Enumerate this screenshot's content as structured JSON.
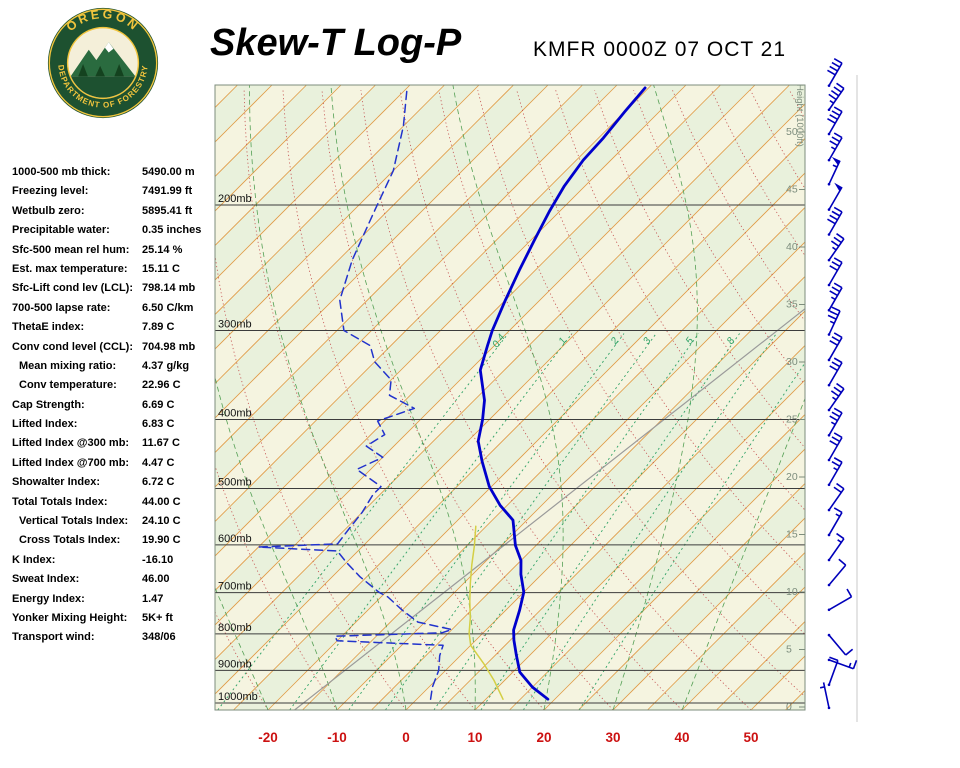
{
  "header": {
    "title": "Skew-T Log-P",
    "station": "KMFR 0000Z 07 OCT 21"
  },
  "logo": {
    "arc_top": "OREGON",
    "arc_bottom": "DEPARTMENT OF FORESTRY",
    "ring_color": "#1d5130",
    "accent_color": "#f2c53d"
  },
  "indices": [
    {
      "label": "1000-500 mb thick:",
      "value": "5490.00 m",
      "indent": false
    },
    {
      "label": "Freezing level:",
      "value": "7491.99 ft",
      "indent": false
    },
    {
      "label": "Wetbulb zero:",
      "value": "5895.41 ft",
      "indent": false
    },
    {
      "label": "Precipitable water:",
      "value": "0.35 inches",
      "indent": false
    },
    {
      "label": "Sfc-500 mean rel hum:",
      "value": "25.14 %",
      "indent": false
    },
    {
      "label": "Est. max temperature:",
      "value": "15.11 C",
      "indent": false
    },
    {
      "label": "Sfc-Lift cond lev (LCL):",
      "value": "798.14 mb",
      "indent": false
    },
    {
      "label": "700-500 lapse rate:",
      "value": "6.50 C/km",
      "indent": false
    },
    {
      "label": "ThetaE index:",
      "value": "7.89 C",
      "indent": false
    },
    {
      "label": "Conv cond level (CCL):",
      "value": "704.98 mb",
      "indent": false
    },
    {
      "label": "Mean mixing ratio:",
      "value": "4.37 g/kg",
      "indent": true
    },
    {
      "label": "Conv temperature:",
      "value": "22.96 C",
      "indent": true
    },
    {
      "label": "Cap Strength:",
      "value": "6.69 C",
      "indent": false
    },
    {
      "label": "Lifted Index:",
      "value": "6.83 C",
      "indent": false
    },
    {
      "label": "Lifted Index @300 mb:",
      "value": "11.67 C",
      "indent": false
    },
    {
      "label": "Lifted Index @700 mb:",
      "value": "4.47 C",
      "indent": false
    },
    {
      "label": "Showalter Index:",
      "value": "6.72 C",
      "indent": false
    },
    {
      "label": "Total Totals Index:",
      "value": "44.00 C",
      "indent": false
    },
    {
      "label": "Vertical Totals Index:",
      "value": "24.10 C",
      "indent": true
    },
    {
      "label": "Cross Totals Index:",
      "value": "19.90 C",
      "indent": true
    },
    {
      "label": "K Index:",
      "value": "-16.10",
      "indent": false
    },
    {
      "label": "Sweat Index:",
      "value": "46.00",
      "indent": false
    },
    {
      "label": "Energy Index:",
      "value": "1.47",
      "indent": false
    },
    {
      "label": "Yonker Mixing Height:",
      "value": "5K+ ft",
      "indent": false
    },
    {
      "label": "Transport wind:",
      "value": "348/06",
      "indent": false
    }
  ],
  "chart_data": {
    "type": "line",
    "diagram": "Skew-T Log-P thermodynamic sounding",
    "title": "Skew-T Log-P",
    "station_line": "KMFR 0000Z 07 OCT 21",
    "x_axis": {
      "ticks": [
        -20,
        -10,
        0,
        10,
        20,
        30,
        40,
        50
      ],
      "unit": "C"
    },
    "pressure_levels": [
      200,
      300,
      400,
      500,
      600,
      700,
      800,
      900,
      1000
    ],
    "pressure_label_suffix": "mb",
    "height_axis": {
      "title": "Height (1000ft)",
      "ticks": [
        50,
        45,
        40,
        35,
        30,
        25,
        20,
        15,
        10,
        5,
        0
      ]
    },
    "mixing_ratio_labels": [
      "0.4",
      "1",
      "2",
      "3",
      "5",
      "8"
    ],
    "background_lines": {
      "isotherm_step_c": 5,
      "band_step_c": 5,
      "dry_adiabat_min": -40,
      "dry_adiabat_max": 180,
      "dry_adiabat_step": 10,
      "moist_adiabat_starts_c": [
        -20,
        -10,
        0,
        10,
        20,
        30,
        40
      ],
      "mixing_ratios_gkg": [
        0.4,
        1,
        2,
        3,
        5,
        8,
        12,
        20
      ]
    },
    "reference_line": {
      "from": [
        292,
        712
      ],
      "to": [
        806,
        308
      ]
    },
    "series": [
      {
        "name": "parcel",
        "color": "#d4cf45",
        "width": 1.5,
        "dash": "",
        "points": [
          [
            988,
            12.5
          ],
          [
            930,
            8.5
          ],
          [
            880,
            4.5
          ],
          [
            830,
            0
          ],
          [
            798,
            -2
          ],
          [
            760,
            -4
          ],
          [
            720,
            -6.5
          ],
          [
            680,
            -9
          ],
          [
            640,
            -11.5
          ],
          [
            600,
            -14
          ],
          [
            565,
            -16.5
          ]
        ]
      },
      {
        "name": "dewpoint",
        "color": "#2233cc",
        "width": 1.5,
        "dash": "8,5",
        "points": [
          [
            988,
            2
          ],
          [
            950,
            0.5
          ],
          [
            900,
            -1
          ],
          [
            858,
            -3
          ],
          [
            830,
            -4
          ],
          [
            818,
            -20
          ],
          [
            806,
            -21
          ],
          [
            797,
            -6
          ],
          [
            789,
            -5
          ],
          [
            770,
            -11
          ],
          [
            741,
            -15
          ],
          [
            710,
            -19
          ],
          [
            699,
            -21
          ],
          [
            665,
            -26
          ],
          [
            635,
            -30
          ],
          [
            612,
            -33
          ],
          [
            604,
            -45
          ],
          [
            598,
            -34
          ],
          [
            570,
            -34.5
          ],
          [
            540,
            -35
          ],
          [
            510,
            -36
          ],
          [
            497,
            -36
          ],
          [
            470,
            -42
          ],
          [
            452,
            -40
          ],
          [
            436,
            -44
          ],
          [
            420,
            -43
          ],
          [
            402,
            -46
          ],
          [
            386,
            -42.5
          ],
          [
            370,
            -48
          ],
          [
            352,
            -50
          ],
          [
            332,
            -55
          ],
          [
            315,
            -58
          ],
          [
            300,
            -64
          ],
          [
            272,
            -69
          ],
          [
            239,
            -73
          ],
          [
            203,
            -77
          ],
          [
            179,
            -80
          ],
          [
            155,
            -85
          ],
          [
            137,
            -90
          ]
        ]
      },
      {
        "name": "temperature",
        "color": "#0000cc",
        "width": 2.8,
        "dash": "",
        "points": [
          [
            988,
            19
          ],
          [
            950,
            15
          ],
          [
            905,
            11
          ],
          [
            856,
            8
          ],
          [
            816,
            5.5
          ],
          [
            790,
            4
          ],
          [
            741,
            2
          ],
          [
            699,
            0
          ],
          [
            660,
            -3
          ],
          [
            631,
            -5
          ],
          [
            601,
            -8
          ],
          [
            554,
            -12
          ],
          [
            528,
            -16
          ],
          [
            497,
            -20.3
          ],
          [
            458,
            -25
          ],
          [
            429,
            -28.5
          ],
          [
            400,
            -31
          ],
          [
            376,
            -33.5
          ],
          [
            341,
            -38.5
          ],
          [
            315,
            -41
          ],
          [
            300,
            -42.5
          ],
          [
            272,
            -45
          ],
          [
            247,
            -47.3
          ],
          [
            224,
            -49.5
          ],
          [
            204,
            -51.5
          ],
          [
            188,
            -53
          ],
          [
            173,
            -54
          ],
          [
            161,
            -54.3
          ],
          [
            148,
            -55
          ],
          [
            137,
            -55.5
          ]
        ]
      }
    ],
    "wind_barbs": [
      {
        "p": 136,
        "dir": 30,
        "spd": 40
      },
      {
        "p": 147,
        "dir": 35,
        "spd": 45
      },
      {
        "p": 159,
        "dir": 30,
        "spd": 40
      },
      {
        "p": 173,
        "dir": 30,
        "spd": 35
      },
      {
        "p": 187,
        "dir": 25,
        "spd": 55
      },
      {
        "p": 203,
        "dir": 30,
        "spd": 50
      },
      {
        "p": 220,
        "dir": 30,
        "spd": 40
      },
      {
        "p": 239,
        "dir": 35,
        "spd": 35
      },
      {
        "p": 259,
        "dir": 30,
        "spd": 30
      },
      {
        "p": 281,
        "dir": 30,
        "spd": 35
      },
      {
        "p": 304,
        "dir": 25,
        "spd": 35
      },
      {
        "p": 330,
        "dir": 30,
        "spd": 30
      },
      {
        "p": 358,
        "dir": 30,
        "spd": 30
      },
      {
        "p": 388,
        "dir": 35,
        "spd": 35
      },
      {
        "p": 421,
        "dir": 30,
        "spd": 35
      },
      {
        "p": 456,
        "dir": 30,
        "spd": 30
      },
      {
        "p": 494,
        "dir": 30,
        "spd": 25
      },
      {
        "p": 536,
        "dir": 35,
        "spd": 20
      },
      {
        "p": 581,
        "dir": 30,
        "spd": 15
      },
      {
        "p": 630,
        "dir": 35,
        "spd": 15
      },
      {
        "p": 683,
        "dir": 40,
        "spd": 10
      },
      {
        "p": 740,
        "dir": 60,
        "spd": 10
      },
      {
        "p": 803,
        "dir": 140,
        "spd": 10
      },
      {
        "p": 870,
        "dir": 110,
        "spd": 15
      },
      {
        "p": 943,
        "dir": 20,
        "spd": 10
      },
      {
        "p": 1016,
        "dir": 348,
        "spd": 5
      }
    ],
    "colors": {
      "temperature": "#0000cc",
      "dewpoint": "#2233cc",
      "parcel": "#d4cf45",
      "isotherm": "#e09a45",
      "dry_adiabat": "#c4504f",
      "moist_adiabat": "#55a055",
      "mixing_ratio": "#2fa266",
      "pressure_line": "#3c3c3c",
      "band_a": "#f5f4e0",
      "band_b": "#e9f1dc",
      "axis_red": "#cc1111",
      "barbs": "#0000bb",
      "reference": "#9a9a9a",
      "frame": "#7d8d7d",
      "height_scale": "#7d8d7d"
    }
  }
}
